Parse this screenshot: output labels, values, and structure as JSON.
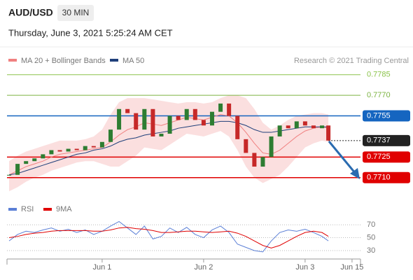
{
  "header": {
    "symbol": "AUD/USD",
    "timeframe": "30 MIN",
    "date": "Thursday, June 3, 2021 5:25:24 AM CET"
  },
  "chart_data": [
    {
      "type": "candlestick",
      "credit": "Research © 2021 Trading Central",
      "x": [
        -22,
        -20,
        -18,
        -16,
        -14,
        -12,
        -10,
        -8,
        -6,
        -4,
        -2,
        0,
        2,
        4,
        6,
        8,
        10,
        12,
        14,
        16,
        18,
        20,
        22,
        24,
        26,
        28,
        30,
        32,
        34,
        36,
        38,
        40,
        42,
        44,
        46,
        48,
        50,
        52,
        53.5
      ],
      "values": [
        0.7712,
        0.772,
        0.7722,
        0.7724,
        0.7727,
        0.773,
        0.7729,
        0.7731,
        0.773,
        0.7733,
        0.7732,
        0.7736,
        0.7745,
        0.776,
        0.7757,
        0.7745,
        0.776,
        0.774,
        0.7742,
        0.7755,
        0.7752,
        0.776,
        0.7752,
        0.7748,
        0.7758,
        0.7764,
        0.7755,
        0.7738,
        0.7728,
        0.7718,
        0.7725,
        0.774,
        0.7748,
        0.7746,
        0.7751,
        0.7748,
        0.7746,
        0.7748,
        0.7737
      ],
      "up_color": "#2e7d32",
      "down_color": "#c62828",
      "series": [
        {
          "name": "MA 20 + Bollinger Bands",
          "color": "#f08080",
          "values": [
            0.7712,
            0.7715,
            0.7718,
            0.772,
            0.7722,
            0.7725,
            0.7727,
            0.7728,
            0.7729,
            0.773,
            0.7731,
            0.7732,
            0.7736,
            0.7741,
            0.7745,
            0.7747,
            0.775,
            0.7749,
            0.7748,
            0.775,
            0.7752,
            0.7754,
            0.7753,
            0.7752,
            0.7754,
            0.7756,
            0.7755,
            0.775,
            0.7743,
            0.7735,
            0.7728,
            0.7727,
            0.773,
            0.7735,
            0.774,
            0.7744,
            0.7746,
            0.7747,
            0.7746
          ],
          "upper": [
            0.7722,
            0.7726,
            0.7729,
            0.7731,
            0.7733,
            0.7735,
            0.7737,
            0.7737,
            0.7737,
            0.7738,
            0.774,
            0.7745,
            0.7756,
            0.7765,
            0.7768,
            0.7768,
            0.7768,
            0.7767,
            0.7766,
            0.7765,
            0.7764,
            0.7765,
            0.7765,
            0.7764,
            0.7765,
            0.7768,
            0.777,
            0.777,
            0.7768,
            0.776,
            0.775,
            0.7745,
            0.7748,
            0.7752,
            0.7755,
            0.7756,
            0.7757,
            0.7757,
            0.7756
          ],
          "lower": [
            0.77,
            0.7703,
            0.7707,
            0.771,
            0.7712,
            0.7715,
            0.7717,
            0.7719,
            0.7721,
            0.7722,
            0.7722,
            0.772,
            0.7718,
            0.7718,
            0.7722,
            0.7726,
            0.7732,
            0.7731,
            0.773,
            0.7734,
            0.7738,
            0.7742,
            0.7741,
            0.774,
            0.7742,
            0.7744,
            0.774,
            0.773,
            0.7718,
            0.771,
            0.7706,
            0.7709,
            0.7712,
            0.7718,
            0.7725,
            0.7732,
            0.7735,
            0.7737,
            0.7736
          ]
        },
        {
          "name": "MA 50",
          "color": "#1f3f7a",
          "values": [
            0.7712,
            0.7713,
            0.7715,
            0.7717,
            0.7719,
            0.7721,
            0.7723,
            0.7725,
            0.7727,
            0.7728,
            0.773,
            0.7731,
            0.7733,
            0.7736,
            0.7738,
            0.7739,
            0.7741,
            0.7742,
            0.7743,
            0.7744,
            0.7746,
            0.7747,
            0.7748,
            0.7749,
            0.775,
            0.7751,
            0.7751,
            0.775,
            0.7748,
            0.7745,
            0.7743,
            0.7743,
            0.7744,
            0.7745,
            0.7746,
            0.7747,
            0.7747,
            0.7747,
            0.7747
          ]
        }
      ],
      "xlim": [
        -22.5,
        61.1
      ],
      "ylim": [
        0.7693,
        0.779
      ],
      "levels": [
        {
          "value": 0.7785,
          "color": "#8bc34a",
          "boxed": false
        },
        {
          "value": 0.777,
          "label": "0.7770",
          "color": "#7cb342",
          "boxed": false
        },
        {
          "value": 0.7755,
          "color": "#1565c0",
          "boxed": true
        },
        {
          "value": 0.7737,
          "color": "#222222",
          "boxed": true,
          "dotted": true
        },
        {
          "value": 0.7725,
          "color": "#e00000",
          "boxed": true
        },
        {
          "value": 0.771,
          "label": "0.7710",
          "color": "#e00000",
          "boxed": true
        }
      ]
    },
    {
      "type": "line",
      "x": [
        -22,
        -20,
        -18,
        -16,
        -14,
        -12,
        -10,
        -8,
        -6,
        -4,
        -2,
        0,
        2,
        4,
        6,
        8,
        10,
        12,
        14,
        16,
        18,
        20,
        22,
        24,
        26,
        28,
        30,
        32,
        34,
        36,
        38,
        40,
        42,
        44,
        46,
        48,
        50,
        52,
        53.5
      ],
      "series": [
        {
          "name": "RSI",
          "color": "#5b7fd6",
          "values": [
            45,
            55,
            60,
            58,
            62,
            65,
            60,
            63,
            58,
            62,
            55,
            60,
            68,
            75,
            65,
            55,
            68,
            48,
            52,
            65,
            58,
            66,
            55,
            50,
            62,
            68,
            58,
            40,
            35,
            30,
            28,
            45,
            58,
            62,
            60,
            63,
            58,
            52,
            45
          ]
        },
        {
          "name": "9MA",
          "color": "#e00000",
          "values": [
            50,
            52,
            55,
            57,
            58,
            60,
            61,
            61,
            61,
            61,
            60,
            60,
            62,
            65,
            66,
            64,
            63,
            61,
            58,
            58,
            59,
            60,
            60,
            59,
            58,
            59,
            60,
            57,
            52,
            45,
            38,
            34,
            38,
            45,
            52,
            58,
            60,
            58,
            52
          ]
        }
      ],
      "xlim": [
        -22.5,
        61.1
      ],
      "ylim": [
        17,
        82
      ],
      "yticks": [
        30,
        50,
        70
      ],
      "xticks": [
        {
          "value": 0,
          "label": "Jun 1"
        },
        {
          "value": 24,
          "label": "Jun 2"
        },
        {
          "value": 48,
          "label": "Jun 3"
        },
        {
          "value": 59.1,
          "label": "Jun 15"
        }
      ]
    }
  ]
}
